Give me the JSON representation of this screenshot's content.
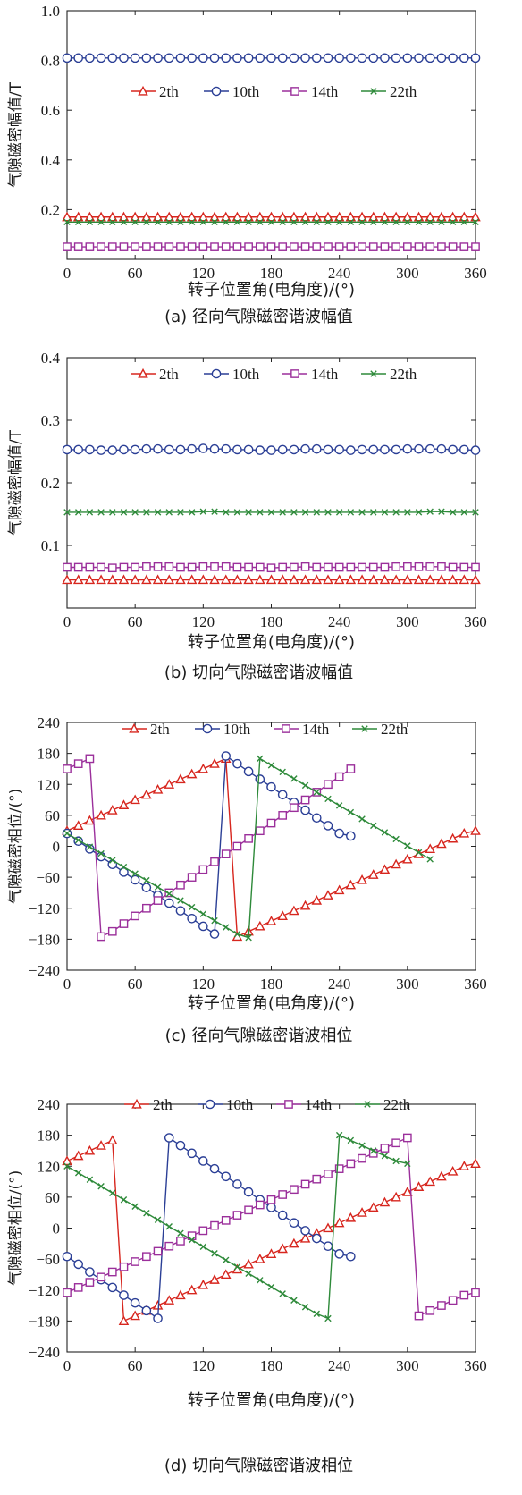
{
  "colors": {
    "2th": "#d7261e",
    "10th": "#2b3f96",
    "14th": "#9b2f9b",
    "22th": "#2e8a3a"
  },
  "charts": [
    {
      "id": "a",
      "caption": "(a) 径向气隙磁密谐波幅值",
      "xlabel": "转子位置角(电角度)/(°)",
      "ylabel": "气隙磁密幅值/T",
      "xticks": [
        "0",
        "60",
        "120",
        "180",
        "240",
        "300",
        "360"
      ],
      "yticks": [
        "0.2",
        "0.4",
        "0.6",
        "0.8",
        "1.0"
      ],
      "xlim": [
        0,
        360
      ],
      "ylim": [
        0.0,
        1.0
      ],
      "legend": [
        "2th",
        "10th",
        "14th",
        "22th"
      ],
      "legend_position": "middle"
    },
    {
      "id": "b",
      "caption": "(b) 切向气隙磁密谐波幅值",
      "xlabel": "转子位置角(电角度)/(°)",
      "ylabel": "气隙磁密幅值/T",
      "xticks": [
        "0",
        "60",
        "120",
        "180",
        "240",
        "300",
        "360"
      ],
      "yticks": [
        "0.1",
        "0.2",
        "0.3",
        "0.4"
      ],
      "xlim": [
        0,
        360
      ],
      "ylim": [
        0.0,
        0.4
      ],
      "legend": [
        "2th",
        "10th",
        "14th",
        "22th"
      ],
      "legend_position": "top"
    },
    {
      "id": "c",
      "caption": "(c) 径向气隙磁密谐波相位",
      "xlabel": "转子位置角(电角度)/(°)",
      "ylabel": "气隙磁密相位/(°)",
      "xticks": [
        "0",
        "60",
        "120",
        "180",
        "240",
        "300",
        "360"
      ],
      "yticks": [
        "−240",
        "−180",
        "−120",
        "−60",
        "0",
        "60",
        "120",
        "180",
        "240"
      ],
      "xlim": [
        0,
        360
      ],
      "ylim": [
        -240,
        240
      ],
      "legend": [
        "2th",
        "10th",
        "14th",
        "22th"
      ],
      "legend_position": "top"
    },
    {
      "id": "d",
      "caption": "(d) 切向气隙磁密谐波相位",
      "xlabel": "转子位置角(电角度)/(°)",
      "ylabel": "气隙磁密相位/(°)",
      "xticks": [
        "0",
        "60",
        "120",
        "180",
        "240",
        "300",
        "360"
      ],
      "yticks": [
        "−240",
        "−180",
        "−120",
        "−60",
        "0",
        "60",
        "120",
        "180",
        "240"
      ],
      "xlim": [
        0,
        360
      ],
      "ylim": [
        -240,
        240
      ],
      "legend": [
        "2th",
        "10th",
        "14th",
        "22th"
      ],
      "legend_position": "top"
    }
  ],
  "chart_data": [
    {
      "type": "line",
      "xlabel": "转子位置角(电角度)/(°)",
      "ylabel": "气隙磁密幅值/T",
      "xlim": [
        0,
        360
      ],
      "ylim": [
        0.0,
        1.0
      ],
      "grid": false,
      "legend": "middle",
      "series": [
        {
          "name": "2th",
          "marker": "triangle",
          "x_start": 0,
          "x_step": 10,
          "values": [
            0.17,
            0.17,
            0.17,
            0.17,
            0.17,
            0.17,
            0.17,
            0.17,
            0.17,
            0.17,
            0.17,
            0.17,
            0.17,
            0.17,
            0.17,
            0.17,
            0.17,
            0.17,
            0.17,
            0.17,
            0.17,
            0.17,
            0.17,
            0.17,
            0.17,
            0.17,
            0.17,
            0.17,
            0.17,
            0.17,
            0.17,
            0.17,
            0.17,
            0.17,
            0.17,
            0.17,
            0.17
          ]
        },
        {
          "name": "10th",
          "marker": "circle",
          "x_start": 0,
          "x_step": 10,
          "values": [
            0.81,
            0.81,
            0.81,
            0.81,
            0.81,
            0.81,
            0.81,
            0.81,
            0.81,
            0.81,
            0.81,
            0.81,
            0.81,
            0.81,
            0.81,
            0.81,
            0.81,
            0.81,
            0.81,
            0.81,
            0.81,
            0.81,
            0.81,
            0.81,
            0.81,
            0.81,
            0.81,
            0.81,
            0.81,
            0.81,
            0.81,
            0.81,
            0.81,
            0.81,
            0.81,
            0.81,
            0.81
          ]
        },
        {
          "name": "14th",
          "marker": "square",
          "x_start": 0,
          "x_step": 10,
          "values": [
            0.05,
            0.05,
            0.05,
            0.05,
            0.05,
            0.05,
            0.05,
            0.05,
            0.05,
            0.05,
            0.05,
            0.05,
            0.05,
            0.05,
            0.05,
            0.05,
            0.05,
            0.05,
            0.05,
            0.05,
            0.05,
            0.05,
            0.05,
            0.05,
            0.05,
            0.05,
            0.05,
            0.05,
            0.05,
            0.05,
            0.05,
            0.05,
            0.05,
            0.05,
            0.05,
            0.05,
            0.05
          ]
        },
        {
          "name": "22th",
          "marker": "x",
          "x_start": 0,
          "x_step": 10,
          "values": [
            0.15,
            0.15,
            0.15,
            0.15,
            0.15,
            0.15,
            0.15,
            0.15,
            0.15,
            0.15,
            0.15,
            0.15,
            0.15,
            0.15,
            0.15,
            0.15,
            0.15,
            0.15,
            0.15,
            0.15,
            0.15,
            0.15,
            0.15,
            0.15,
            0.15,
            0.15,
            0.15,
            0.15,
            0.15,
            0.15,
            0.15,
            0.15,
            0.15,
            0.15,
            0.15,
            0.15,
            0.15
          ]
        }
      ]
    },
    {
      "type": "line",
      "xlabel": "转子位置角(电角度)/(°)",
      "ylabel": "气隙磁密幅值/T",
      "xlim": [
        0,
        360
      ],
      "ylim": [
        0.0,
        0.4
      ],
      "grid": false,
      "legend": "top",
      "series": [
        {
          "name": "2th",
          "marker": "triangle",
          "x_start": 0,
          "x_step": 10,
          "values": [
            0.045,
            0.045,
            0.045,
            0.045,
            0.045,
            0.045,
            0.045,
            0.045,
            0.045,
            0.045,
            0.045,
            0.045,
            0.045,
            0.045,
            0.045,
            0.045,
            0.045,
            0.045,
            0.045,
            0.045,
            0.045,
            0.045,
            0.045,
            0.045,
            0.045,
            0.045,
            0.045,
            0.045,
            0.045,
            0.045,
            0.045,
            0.045,
            0.045,
            0.045,
            0.045,
            0.045,
            0.045
          ]
        },
        {
          "name": "10th",
          "marker": "circle",
          "x_start": 0,
          "x_step": 10,
          "values": [
            0.253,
            0.253,
            0.253,
            0.252,
            0.252,
            0.253,
            0.253,
            0.254,
            0.254,
            0.253,
            0.253,
            0.254,
            0.255,
            0.254,
            0.254,
            0.253,
            0.253,
            0.252,
            0.252,
            0.253,
            0.253,
            0.254,
            0.254,
            0.253,
            0.253,
            0.252,
            0.253,
            0.253,
            0.253,
            0.253,
            0.254,
            0.254,
            0.254,
            0.254,
            0.253,
            0.253,
            0.252
          ]
        },
        {
          "name": "14th",
          "marker": "square",
          "x_start": 0,
          "x_step": 10,
          "values": [
            0.065,
            0.065,
            0.065,
            0.065,
            0.064,
            0.065,
            0.065,
            0.066,
            0.066,
            0.066,
            0.065,
            0.065,
            0.066,
            0.066,
            0.066,
            0.065,
            0.065,
            0.065,
            0.064,
            0.065,
            0.065,
            0.066,
            0.065,
            0.065,
            0.065,
            0.065,
            0.065,
            0.065,
            0.065,
            0.066,
            0.066,
            0.066,
            0.066,
            0.066,
            0.065,
            0.065,
            0.065
          ]
        },
        {
          "name": "22th",
          "marker": "x",
          "x_start": 0,
          "x_step": 10,
          "values": [
            0.153,
            0.153,
            0.153,
            0.153,
            0.153,
            0.153,
            0.153,
            0.153,
            0.153,
            0.153,
            0.153,
            0.153,
            0.154,
            0.154,
            0.153,
            0.153,
            0.153,
            0.153,
            0.153,
            0.153,
            0.153,
            0.153,
            0.153,
            0.153,
            0.153,
            0.153,
            0.153,
            0.153,
            0.153,
            0.153,
            0.153,
            0.153,
            0.154,
            0.154,
            0.153,
            0.153,
            0.153
          ]
        }
      ]
    },
    {
      "type": "line",
      "xlabel": "转子位置角(电角度)/(°)",
      "ylabel": "气隙磁密相位/(°)",
      "xlim": [
        0,
        360
      ],
      "ylim": [
        -240,
        240
      ],
      "grid": false,
      "legend": "top",
      "series": [
        {
          "name": "2th",
          "marker": "triangle",
          "x_start": 0,
          "x_step": 10,
          "values": [
            30,
            40,
            50,
            60,
            70,
            80,
            90,
            100,
            110,
            120,
            130,
            140,
            150,
            160,
            170,
            -175,
            -165,
            -155,
            -145,
            -135,
            -125,
            -115,
            -105,
            -95,
            -85,
            -75,
            -65,
            -55,
            -45,
            -35,
            -25,
            -15,
            -5,
            5,
            15,
            25,
            30
          ]
        },
        {
          "name": "10th",
          "marker": "circle",
          "x_start": 0,
          "x_step": 10,
          "values": [
            25,
            10,
            -5,
            -20,
            -35,
            -50,
            -65,
            -80,
            -95,
            -110,
            -125,
            -140,
            -155,
            -170,
            175,
            160,
            145,
            130,
            115,
            100,
            85,
            70,
            55,
            40,
            25,
            20
          ]
        },
        {
          "name": "14th",
          "marker": "square",
          "x_start": 0,
          "x_step": 10,
          "values": [
            150,
            160,
            170,
            -175,
            -165,
            -150,
            -135,
            -120,
            -105,
            -90,
            -75,
            -60,
            -45,
            -30,
            -15,
            0,
            15,
            30,
            45,
            60,
            75,
            90,
            105,
            120,
            135,
            150
          ]
        },
        {
          "name": "22th",
          "marker": "x",
          "x_start": 0,
          "x_step": 10,
          "values": [
            25,
            12,
            -1,
            -14,
            -27,
            -40,
            -53,
            -66,
            -79,
            -92,
            -105,
            -118,
            -131,
            -144,
            -157,
            -170,
            -177,
            170,
            157,
            144,
            131,
            118,
            105,
            92,
            79,
            66,
            53,
            40,
            27,
            14,
            1,
            -12,
            -25
          ]
        }
      ]
    },
    {
      "type": "line",
      "xlabel": "转子位置角(电角度)/(°)",
      "ylabel": "气隙磁密相位/(°)",
      "xlim": [
        0,
        360
      ],
      "ylim": [
        -240,
        240
      ],
      "grid": false,
      "legend": "top",
      "series": [
        {
          "name": "2th",
          "marker": "triangle",
          "x_start": 0,
          "x_step": 10,
          "values": [
            130,
            140,
            150,
            160,
            170,
            -180,
            -170,
            -160,
            -150,
            -140,
            -130,
            -120,
            -110,
            -100,
            -90,
            -80,
            -70,
            -60,
            -50,
            -40,
            -30,
            -20,
            -10,
            0,
            10,
            20,
            30,
            40,
            50,
            60,
            70,
            80,
            90,
            100,
            110,
            120,
            125
          ]
        },
        {
          "name": "10th",
          "marker": "circle",
          "x_start": 0,
          "x_step": 10,
          "values": [
            -55,
            -70,
            -85,
            -100,
            -115,
            -130,
            -145,
            -160,
            -175,
            175,
            160,
            145,
            130,
            115,
            100,
            85,
            70,
            55,
            40,
            25,
            10,
            -5,
            -20,
            -35,
            -50,
            -55
          ]
        },
        {
          "name": "14th",
          "marker": "square",
          "x_start": 0,
          "x_step": 10,
          "values": [
            -125,
            -115,
            -105,
            -95,
            -85,
            -75,
            -65,
            -55,
            -45,
            -35,
            -25,
            -15,
            -5,
            5,
            15,
            25,
            35,
            45,
            55,
            65,
            75,
            85,
            95,
            105,
            115,
            125,
            135,
            145,
            155,
            165,
            175,
            -170,
            -160,
            -150,
            -140,
            -130,
            -125
          ]
        },
        {
          "name": "22th",
          "marker": "x",
          "x_start": 0,
          "x_step": 10,
          "values": [
            120,
            107,
            94,
            81,
            68,
            55,
            42,
            29,
            16,
            3,
            -10,
            -23,
            -36,
            -49,
            -62,
            -75,
            -88,
            -101,
            -114,
            -127,
            -140,
            -153,
            -166,
            -175,
            180,
            170,
            160,
            150,
            140,
            130,
            125
          ]
        }
      ]
    }
  ]
}
